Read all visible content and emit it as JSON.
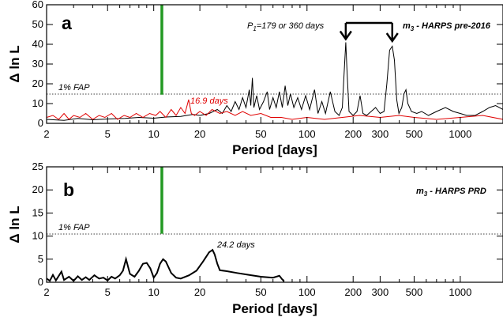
{
  "chart_data": [
    {
      "panel": "a",
      "type": "line",
      "xlabel": "Period [days]",
      "ylabel": "Δ ln L",
      "x_scale": "log",
      "xlim": [
        2,
        1900
      ],
      "ylim": [
        0,
        60
      ],
      "x_ticks": [
        2,
        5,
        10,
        20,
        50,
        100,
        200,
        300,
        500,
        1000
      ],
      "y_ticks": [
        0,
        10,
        20,
        30,
        40,
        50,
        60
      ],
      "fap_level": 14.5,
      "fap_label": "1% FAP",
      "green_line": {
        "x": 11.3,
        "y_from": 14.5,
        "y_to": 60
      },
      "annotations": {
        "p1_label_main": "P",
        "p1_label_sub": "1",
        "p1_label_rest": "=179 or 360 days",
        "red_peak_label": "16.9 days",
        "dataset_label_main": "m",
        "dataset_label_sub": "3",
        "dataset_label_rest": " - HARPS pre-2016"
      },
      "arrows": [
        {
          "x": 179,
          "y_tip": 41
        },
        {
          "x": 360,
          "y_tip": 40
        }
      ],
      "series": [
        {
          "color": "#000000",
          "points": [
            [
              2,
              2
            ],
            [
              2.6,
              1.5
            ],
            [
              3.2,
              2.5
            ],
            [
              4,
              1.8
            ],
            [
              5,
              2.2
            ],
            [
              6.5,
              2.5
            ],
            [
              8,
              3
            ],
            [
              10,
              2.6
            ],
            [
              12,
              3.2
            ],
            [
              15,
              3.5
            ],
            [
              18,
              4.5
            ],
            [
              20,
              4
            ],
            [
              23,
              5
            ],
            [
              26,
              7
            ],
            [
              28,
              5
            ],
            [
              30,
              9
            ],
            [
              32,
              6
            ],
            [
              34,
              11
            ],
            [
              36,
              7
            ],
            [
              38,
              13
            ],
            [
              40,
              8
            ],
            [
              42,
              17
            ],
            [
              43,
              9
            ],
            [
              44,
              23
            ],
            [
              45,
              8
            ],
            [
              47,
              14
            ],
            [
              49,
              7
            ],
            [
              52,
              11
            ],
            [
              55,
              16
            ],
            [
              57,
              7
            ],
            [
              60,
              13
            ],
            [
              63,
              8
            ],
            [
              66,
              16
            ],
            [
              69,
              8
            ],
            [
              72,
              19
            ],
            [
              75,
              9
            ],
            [
              78,
              15
            ],
            [
              82,
              8
            ],
            [
              87,
              13
            ],
            [
              92,
              7
            ],
            [
              98,
              14
            ],
            [
              104,
              7
            ],
            [
              112,
              17
            ],
            [
              118,
              5
            ],
            [
              125,
              11
            ],
            [
              132,
              5
            ],
            [
              142,
              16
            ],
            [
              152,
              6
            ],
            [
              162,
              4
            ],
            [
              170,
              8
            ],
            [
              176,
              30
            ],
            [
              179,
              41
            ],
            [
              182,
              28
            ],
            [
              188,
              6
            ],
            [
              200,
              4
            ],
            [
              212,
              6
            ],
            [
              222,
              14
            ],
            [
              232,
              5
            ],
            [
              245,
              4
            ],
            [
              262,
              6
            ],
            [
              280,
              8
            ],
            [
              300,
              5
            ],
            [
              318,
              6
            ],
            [
              332,
              20
            ],
            [
              346,
              37
            ],
            [
              360,
              39
            ],
            [
              372,
              32
            ],
            [
              385,
              12
            ],
            [
              398,
              5
            ],
            [
              415,
              8
            ],
            [
              430,
              15
            ],
            [
              442,
              17
            ],
            [
              455,
              10
            ],
            [
              480,
              6
            ],
            [
              520,
              5
            ],
            [
              560,
              6
            ],
            [
              620,
              4
            ],
            [
              700,
              6
            ],
            [
              800,
              8
            ],
            [
              900,
              6
            ],
            [
              1000,
              5
            ],
            [
              1100,
              4
            ],
            [
              1250,
              4
            ],
            [
              1400,
              6
            ],
            [
              1550,
              8
            ],
            [
              1700,
              9
            ],
            [
              1900,
              7
            ]
          ]
        },
        {
          "color": "#e00000",
          "points": [
            [
              2,
              3
            ],
            [
              2.2,
              4
            ],
            [
              2.4,
              2
            ],
            [
              2.6,
              5
            ],
            [
              2.8,
              2
            ],
            [
              3,
              4
            ],
            [
              3.3,
              3
            ],
            [
              3.6,
              5
            ],
            [
              4,
              2
            ],
            [
              4.4,
              4
            ],
            [
              4.8,
              3
            ],
            [
              5.3,
              5
            ],
            [
              5.8,
              2
            ],
            [
              6.4,
              4
            ],
            [
              7,
              3
            ],
            [
              7.7,
              5
            ],
            [
              8.5,
              3
            ],
            [
              9.4,
              5
            ],
            [
              10.3,
              4
            ],
            [
              11,
              6
            ],
            [
              12,
              3
            ],
            [
              13,
              7
            ],
            [
              14,
              4
            ],
            [
              15,
              8
            ],
            [
              16,
              5
            ],
            [
              16.9,
              12
            ],
            [
              17.6,
              5
            ],
            [
              18.5,
              4
            ],
            [
              20,
              6
            ],
            [
              22,
              4
            ],
            [
              24,
              7
            ],
            [
              27,
              5
            ],
            [
              30,
              6
            ],
            [
              34,
              4
            ],
            [
              38,
              6
            ],
            [
              43,
              4
            ],
            [
              50,
              5
            ],
            [
              58,
              3
            ],
            [
              68,
              3
            ],
            [
              80,
              2
            ],
            [
              100,
              3
            ],
            [
              130,
              2
            ],
            [
              170,
              3
            ],
            [
              220,
              4
            ],
            [
              300,
              3
            ],
            [
              400,
              4
            ],
            [
              500,
              3
            ],
            [
              700,
              2
            ],
            [
              1000,
              3
            ],
            [
              1400,
              4
            ],
            [
              1900,
              2
            ]
          ]
        }
      ]
    },
    {
      "panel": "b",
      "type": "line",
      "xlabel": "Period [days]",
      "ylabel": "Δ ln L",
      "x_scale": "log",
      "xlim": [
        2,
        1900
      ],
      "ylim": [
        0,
        25
      ],
      "x_ticks": [
        2,
        5,
        10,
        20,
        50,
        100,
        200,
        300,
        500,
        1000
      ],
      "y_ticks": [
        0,
        5,
        10,
        15,
        20,
        25
      ],
      "fap_level": 10.5,
      "fap_label": "1% FAP",
      "green_line": {
        "x": 11.3,
        "y_from": 10.5,
        "y_to": 25
      },
      "annotations": {
        "peak_label": "24.2 days",
        "dataset_label_main": "m",
        "dataset_label_sub": "3",
        "dataset_label_rest": " - HARPS PRD"
      },
      "series": [
        {
          "color": "#000000",
          "points": [
            [
              2,
              0.8
            ],
            [
              2.1,
              0.3
            ],
            [
              2.2,
              1.6
            ],
            [
              2.3,
              0.4
            ],
            [
              2.5,
              2.3
            ],
            [
              2.6,
              0.5
            ],
            [
              2.8,
              1.2
            ],
            [
              3,
              0.3
            ],
            [
              3.2,
              1.3
            ],
            [
              3.4,
              0.5
            ],
            [
              3.6,
              1.1
            ],
            [
              3.8,
              0.5
            ],
            [
              4.1,
              1.5
            ],
            [
              4.4,
              0.8
            ],
            [
              4.7,
              1
            ],
            [
              5,
              0.4
            ],
            [
              5.3,
              1.2
            ],
            [
              5.6,
              0.8
            ],
            [
              6,
              1.5
            ],
            [
              6.3,
              2.5
            ],
            [
              6.6,
              5
            ],
            [
              7,
              1.8
            ],
            [
              7.5,
              1.2
            ],
            [
              8,
              2.5
            ],
            [
              8.5,
              4
            ],
            [
              9,
              4.2
            ],
            [
              9.5,
              3
            ],
            [
              10,
              1
            ],
            [
              10.5,
              2
            ],
            [
              11,
              4
            ],
            [
              11.5,
              5
            ],
            [
              12,
              4.5
            ],
            [
              13,
              2
            ],
            [
              14,
              1
            ],
            [
              15,
              0.8
            ],
            [
              17,
              1.5
            ],
            [
              19,
              2.5
            ],
            [
              21,
              4.5
            ],
            [
              23,
              6.5
            ],
            [
              24.2,
              7
            ],
            [
              25,
              6
            ],
            [
              26,
              4
            ],
            [
              27,
              2.6
            ],
            [
              30,
              2.4
            ],
            [
              35,
              2
            ],
            [
              42,
              1.6
            ],
            [
              50,
              1.2
            ],
            [
              60,
              1
            ],
            [
              66,
              1.4
            ],
            [
              69,
              0.6
            ],
            [
              71,
              0.2
            ]
          ]
        }
      ]
    }
  ]
}
